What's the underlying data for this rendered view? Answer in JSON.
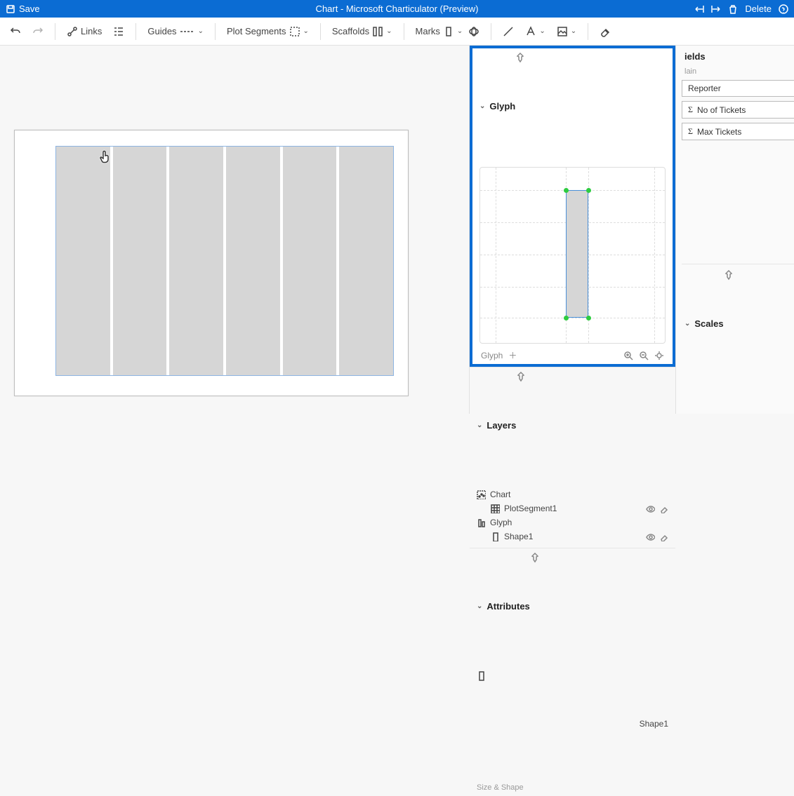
{
  "titlebar": {
    "save_label": "Save",
    "title": "Chart - Microsoft Charticulator (Preview)",
    "delete_label": "Delete"
  },
  "toolbar": {
    "links_label": "Links",
    "guides_label": "Guides",
    "plot_segments_label": "Plot Segments",
    "scaffolds_label": "Scaffolds",
    "marks_label": "Marks"
  },
  "canvas": {
    "bar_count": 6,
    "bar_color": "#d6d6d6",
    "plot_border_color": "#8db4e2",
    "frame_border_color": "#bdbdbd"
  },
  "glyph_panel": {
    "title": "Glyph",
    "footer_label": "Glyph",
    "highlight_color": "#0b6cd3",
    "shape_color": "#d6d6d6",
    "shape_border": "#4a90d9",
    "handle_color": "#2ecc40"
  },
  "layers": {
    "title": "Layers",
    "chart_label": "Chart",
    "plot_segment_label": "PlotSegment1",
    "glyph_label": "Glyph",
    "shape_label": "Shape1"
  },
  "attributes": {
    "title": "Attributes",
    "shape_label": "Shape1",
    "section_size_shape": "Size & Shape"
  },
  "fields": {
    "title": "ields",
    "subtitle": "lain",
    "reporter": "Reporter",
    "no_of_tickets": "No of Tickets",
    "max_tickets": "Max Tickets"
  },
  "scales": {
    "title": "Scales"
  },
  "colors": {
    "brand": "#0b6cd3",
    "panel_border": "#e1e1e1"
  }
}
